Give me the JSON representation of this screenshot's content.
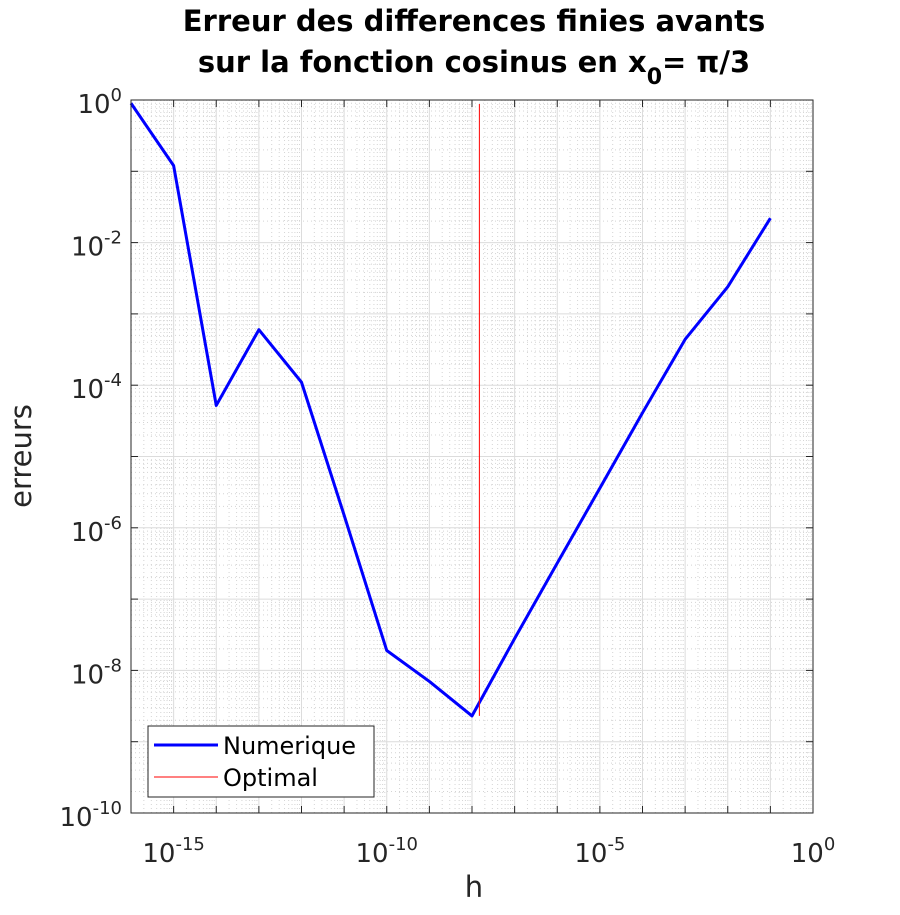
{
  "chart_data": {
    "type": "line",
    "title_line1": "Erreur des differences finies avants",
    "title_line2_prefix": "sur la fonction cosinus en x",
    "title_line2_sub": "0",
    "title_line2_suffix": "= π/3",
    "xlabel": "h",
    "ylabel": "erreurs",
    "x_scale": "log",
    "y_scale": "log",
    "xlim": [
      1e-16,
      1
    ],
    "ylim": [
      1e-10,
      1
    ],
    "x_ticks": [
      {
        "base": "10",
        "exp": "-15",
        "value": 1e-15
      },
      {
        "base": "10",
        "exp": "-10",
        "value": 1e-10
      },
      {
        "base": "10",
        "exp": "-5",
        "value": 1e-05
      },
      {
        "base": "10",
        "exp": "0",
        "value": 1
      }
    ],
    "y_ticks": [
      {
        "base": "10",
        "exp": "0",
        "value": 1
      },
      {
        "base": "10",
        "exp": "-2",
        "value": 0.01
      },
      {
        "base": "10",
        "exp": "-4",
        "value": 0.0001
      },
      {
        "base": "10",
        "exp": "-6",
        "value": 1e-06
      },
      {
        "base": "10",
        "exp": "-8",
        "value": 1e-08
      },
      {
        "base": "10",
        "exp": "-10",
        "value": 1e-10
      }
    ],
    "grid": true,
    "minor_grid": true,
    "legend_position": "bottom-left",
    "series": [
      {
        "name": "Numerique",
        "color": "#0000ff",
        "x": [
          1e-16,
          1e-15,
          1e-14,
          1e-13,
          1e-12,
          1e-11,
          1e-10,
          1e-09,
          1e-08,
          1e-07,
          1e-06,
          1e-05,
          0.0001,
          0.001,
          0.01,
          0.1
        ],
        "y": [
          0.9,
          0.12,
          5.2e-05,
          0.0006,
          0.00011,
          1.5e-06,
          1.9e-08,
          7e-09,
          2.3e-09,
          2.8e-08,
          3.2e-07,
          3.6e-06,
          4.1e-05,
          0.00044,
          0.0024,
          0.022
        ]
      },
      {
        "name": "Optimal",
        "color": "#ff0000",
        "x": [
          1.49e-08,
          1.49e-08
        ],
        "y": [
          0.88,
          2.3e-09
        ]
      }
    ]
  }
}
